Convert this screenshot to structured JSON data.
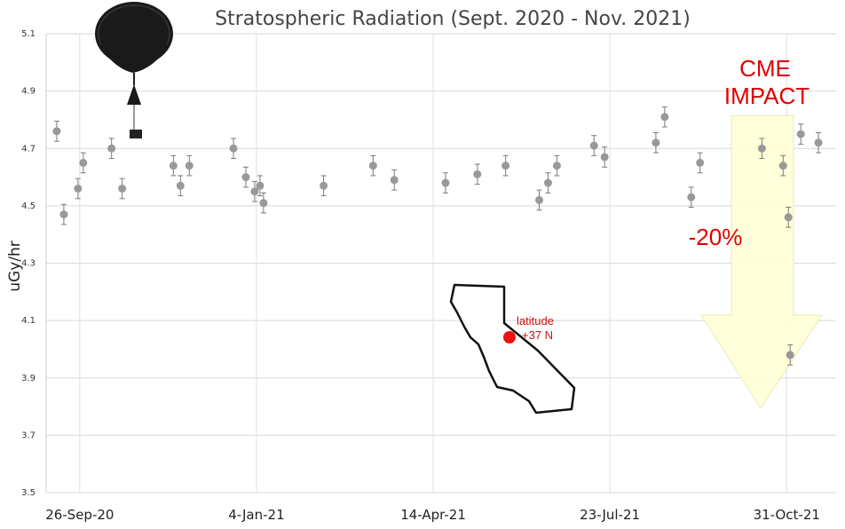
{
  "chart_data": {
    "type": "scatter",
    "title": "Stratospheric Radiation (Sept. 2020 - Nov. 2021)",
    "ylabel": "uGy/hr",
    "xlabel": "",
    "ylim": [
      3.5,
      5.1
    ],
    "yticks": [
      "5.1",
      "4.9",
      "4.7",
      "4.5",
      "4.3",
      "4.1",
      "3.9",
      "3.7",
      "3.5"
    ],
    "xlim": [
      "2020-09-07",
      "2021-11-28"
    ],
    "xticks": [
      {
        "date": "2020-09-26",
        "label": "26-Sep-20"
      },
      {
        "date": "2021-01-04",
        "label": "4-Jan-21"
      },
      {
        "date": "2021-04-14",
        "label": "14-Apr-21"
      },
      {
        "date": "2021-07-23",
        "label": "23-Jul-21"
      },
      {
        "date": "2021-10-31",
        "label": "31-Oct-21"
      }
    ],
    "grid": true,
    "marker_color": "#999999",
    "points": [
      {
        "x": "2020-09-13",
        "y": 4.76,
        "err": 0.035
      },
      {
        "x": "2020-09-17",
        "y": 4.47,
        "err": 0.035
      },
      {
        "x": "2020-09-25",
        "y": 4.56,
        "err": 0.035
      },
      {
        "x": "2020-09-28",
        "y": 4.65,
        "err": 0.035
      },
      {
        "x": "2020-10-14",
        "y": 4.7,
        "err": 0.035
      },
      {
        "x": "2020-10-20",
        "y": 4.56,
        "err": 0.035
      },
      {
        "x": "2020-11-18",
        "y": 4.64,
        "err": 0.035
      },
      {
        "x": "2020-11-22",
        "y": 4.57,
        "err": 0.035
      },
      {
        "x": "2020-11-27",
        "y": 4.64,
        "err": 0.035
      },
      {
        "x": "2020-12-22",
        "y": 4.7,
        "err": 0.035
      },
      {
        "x": "2020-12-29",
        "y": 4.6,
        "err": 0.035
      },
      {
        "x": "2021-01-03",
        "y": 4.55,
        "err": 0.035
      },
      {
        "x": "2021-01-06",
        "y": 4.57,
        "err": 0.035
      },
      {
        "x": "2021-01-08",
        "y": 4.51,
        "err": 0.035
      },
      {
        "x": "2021-02-11",
        "y": 4.57,
        "err": 0.035
      },
      {
        "x": "2021-03-11",
        "y": 4.64,
        "err": 0.035
      },
      {
        "x": "2021-03-23",
        "y": 4.59,
        "err": 0.035
      },
      {
        "x": "2021-04-21",
        "y": 4.58,
        "err": 0.035
      },
      {
        "x": "2021-05-09",
        "y": 4.61,
        "err": 0.035
      },
      {
        "x": "2021-05-25",
        "y": 4.64,
        "err": 0.035
      },
      {
        "x": "2021-06-13",
        "y": 4.52,
        "err": 0.035
      },
      {
        "x": "2021-06-18",
        "y": 4.58,
        "err": 0.035
      },
      {
        "x": "2021-06-23",
        "y": 4.64,
        "err": 0.035
      },
      {
        "x": "2021-07-14",
        "y": 4.71,
        "err": 0.035
      },
      {
        "x": "2021-07-20",
        "y": 4.67,
        "err": 0.035
      },
      {
        "x": "2021-08-18",
        "y": 4.72,
        "err": 0.035
      },
      {
        "x": "2021-08-23",
        "y": 4.81,
        "err": 0.035
      },
      {
        "x": "2021-09-07",
        "y": 4.53,
        "err": 0.035
      },
      {
        "x": "2021-09-12",
        "y": 4.65,
        "err": 0.035
      },
      {
        "x": "2021-10-17",
        "y": 4.7,
        "err": 0.035
      },
      {
        "x": "2021-10-29",
        "y": 4.64,
        "err": 0.035
      },
      {
        "x": "2021-11-01",
        "y": 4.46,
        "err": 0.035
      },
      {
        "x": "2021-11-02",
        "y": 3.98,
        "err": 0.035
      },
      {
        "x": "2021-11-08",
        "y": 4.75,
        "err": 0.035
      },
      {
        "x": "2021-11-18",
        "y": 4.72,
        "err": 0.035
      }
    ],
    "annotations": {
      "cme_line1": "CME",
      "cme_line2": "IMPACT",
      "drop_label": "-20%",
      "location_line1": "latitude",
      "location_line2": "+37 N"
    },
    "colors": {
      "annotation_text": "#e00000",
      "arrow_fill": "#ffffd8",
      "location_dot": "#ee1111"
    }
  }
}
